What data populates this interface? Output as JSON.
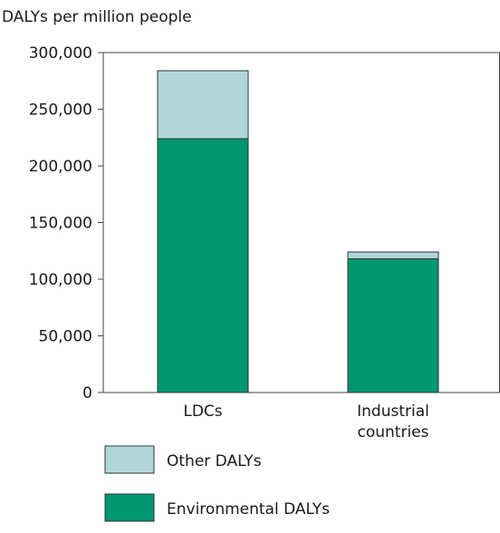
{
  "chart_data": {
    "type": "bar",
    "stacked": true,
    "ylabel": "DALYs per million people",
    "categories": [
      "LDCs",
      "Industrial\ncountries"
    ],
    "series": [
      {
        "name": "Environmental DALYs",
        "color": "#009670",
        "values": [
          224000,
          118000
        ]
      },
      {
        "name": "Other DALYs",
        "color": "#afd6d8",
        "values": [
          60000,
          6000
        ]
      }
    ],
    "ylim": [
      0,
      300000
    ],
    "yticks": [
      0,
      50000,
      100000,
      150000,
      200000,
      250000,
      300000
    ],
    "ytick_labels": [
      "0",
      "50,000",
      "100,000",
      "150,000",
      "200,000",
      "250,000",
      "300,000"
    ],
    "grid": false,
    "legend_position": "bottom-left",
    "legend_order": [
      "Other DALYs",
      "Environmental DALYs"
    ]
  }
}
